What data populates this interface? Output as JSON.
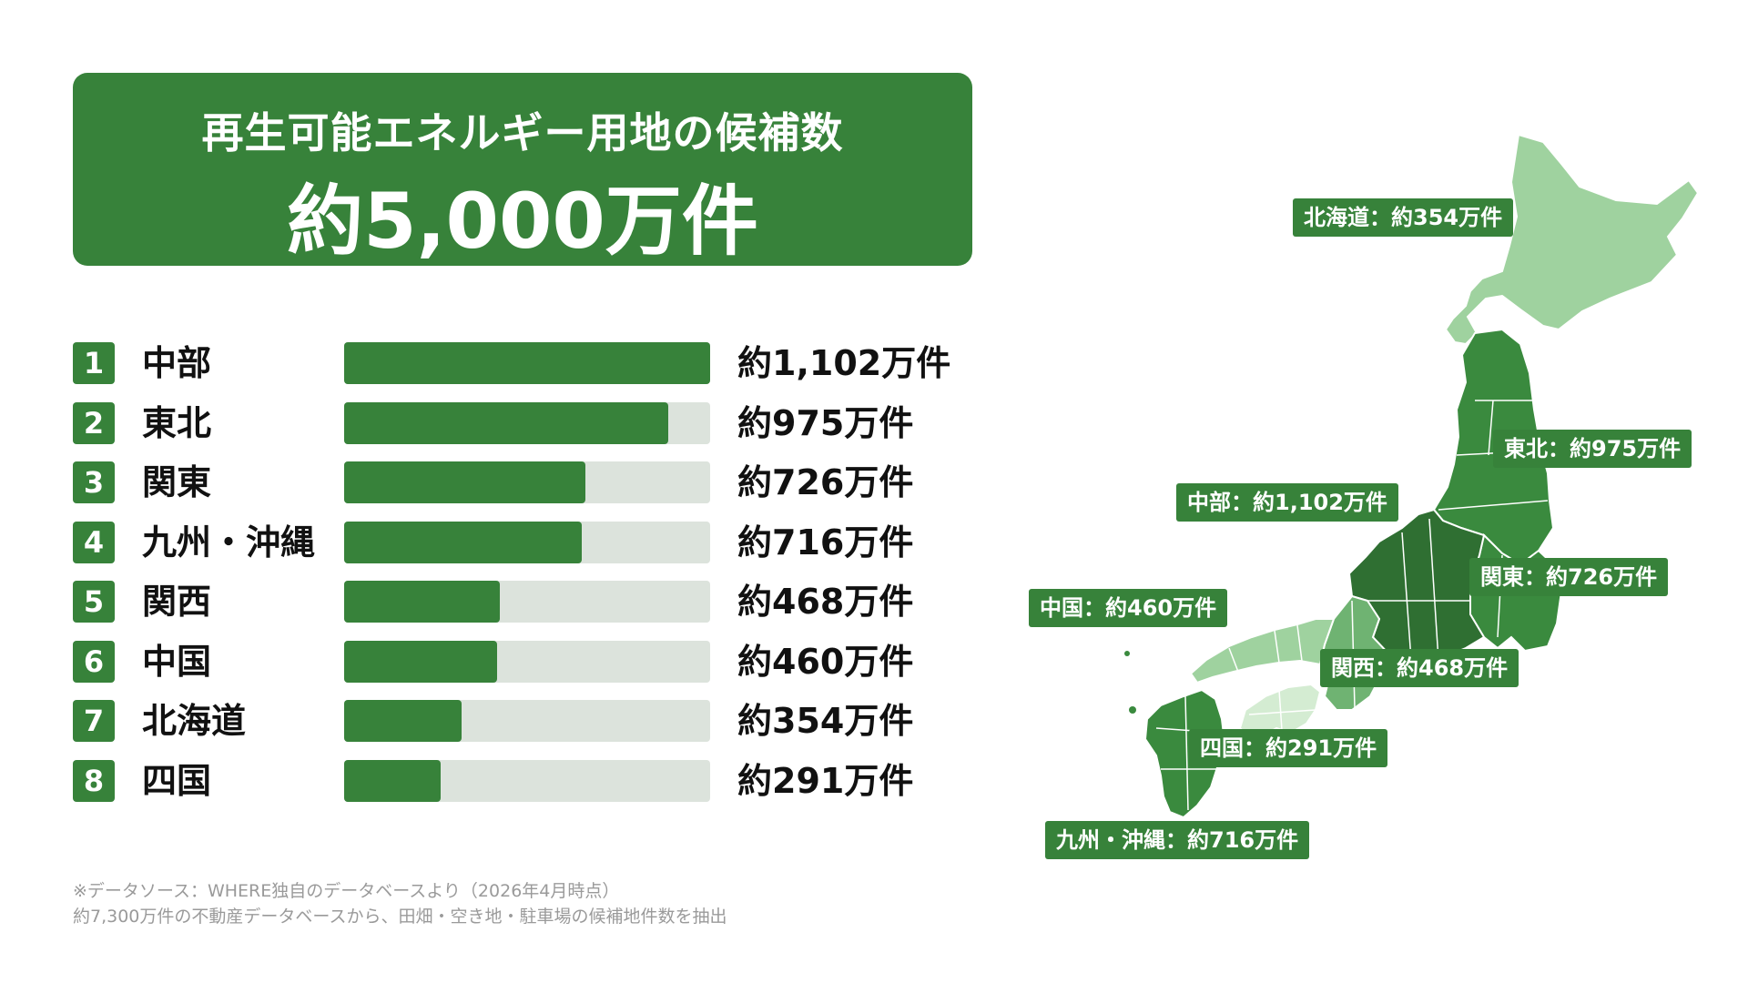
{
  "header": {
    "subtitle": "再生可能エネルギー用地の候補数",
    "total": "約5,000万件"
  },
  "colors": {
    "primary_green": "#37823a",
    "track_gray": "#dce3dc",
    "map_darkest": "#2f6f32",
    "map_dark": "#3a8a3e",
    "map_medium": "#6fb372",
    "map_light": "#9fd29f",
    "map_lightest": "#d4ecd2"
  },
  "chart_data": {
    "type": "bar",
    "orientation": "horizontal",
    "categories": [
      "中部",
      "東北",
      "関東",
      "九州・沖縄",
      "関西",
      "中国",
      "北海道",
      "四国"
    ],
    "values": [
      1102,
      975,
      726,
      716,
      468,
      460,
      354,
      291
    ],
    "unit": "万件",
    "value_labels": [
      "約1,102万件",
      "約975万件",
      "約726万件",
      "約716万件",
      "約468万件",
      "約460万件",
      "約354万件",
      "約291万件"
    ],
    "ranks": [
      "1",
      "2",
      "3",
      "4",
      "5",
      "6",
      "7",
      "8"
    ],
    "xlim": [
      0,
      1102
    ]
  },
  "map_labels": {
    "hokkaido": "北海道：約354万件",
    "tohoku": "東北：約975万件",
    "chubu": "中部：約1,102万件",
    "kanto": "関東：約726万件",
    "chugoku": "中国：約460万件",
    "kansai": "関西：約468万件",
    "shikoku": "四国：約291万件",
    "kyushu": "九州・沖縄：約716万件"
  },
  "footnote": {
    "line1": "※データソース：WHERE独自のデータベースより（2026年4月時点）",
    "line2": "約7,300万件の不動産データベースから、田畑・空き地・駐車場の候補地件数を抽出"
  }
}
